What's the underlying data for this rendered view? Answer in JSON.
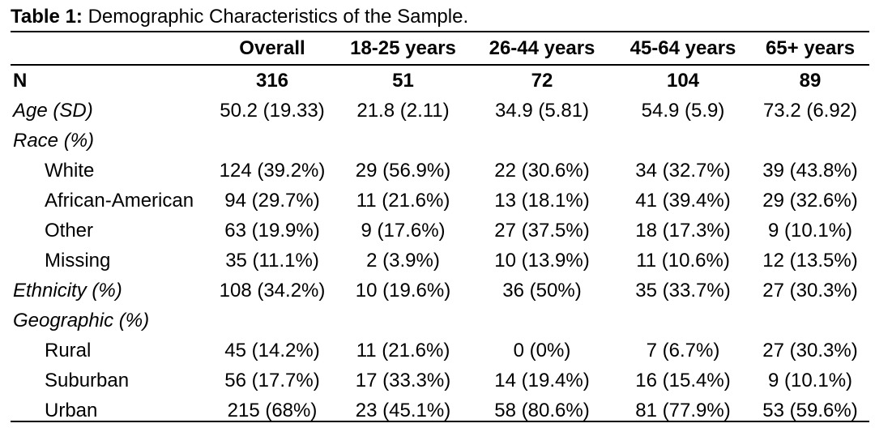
{
  "caption": {
    "label": "Table 1:",
    "text": " Demographic Characteristics of the Sample."
  },
  "table": {
    "headers": [
      "",
      "Overall",
      "18-25 years",
      "26-44 years",
      "45-64 years",
      "65+ years"
    ],
    "rows": [
      {
        "label": "N",
        "cells": [
          "316",
          "51",
          "72",
          "104",
          "89"
        ]
      },
      {
        "label": "Age (SD)",
        "cells": [
          "50.2 (19.33)",
          "21.8 (2.11)",
          "34.9 (5.81)",
          "54.9 (5.9)",
          "73.2 (6.92)"
        ]
      },
      {
        "label": "Race (%)",
        "cells": [
          "",
          "",
          "",
          "",
          ""
        ]
      },
      {
        "label": "White",
        "cells": [
          "124 (39.2%)",
          "29 (56.9%)",
          "22 (30.6%)",
          "34 (32.7%)",
          "39 (43.8%)"
        ]
      },
      {
        "label": "African-American",
        "cells": [
          "94 (29.7%)",
          "11 (21.6%)",
          "13 (18.1%)",
          "41 (39.4%)",
          "29 (32.6%)"
        ]
      },
      {
        "label": "Other",
        "cells": [
          "63 (19.9%)",
          "9 (17.6%)",
          "27 (37.5%)",
          "18 (17.3%)",
          "9 (10.1%)"
        ]
      },
      {
        "label": "Missing",
        "cells": [
          "35 (11.1%)",
          "2 (3.9%)",
          "10 (13.9%)",
          "11 (10.6%)",
          "12 (13.5%)"
        ]
      },
      {
        "label": "Ethnicity (%)",
        "cells": [
          "108 (34.2%)",
          "10 (19.6%)",
          "36 (50%)",
          "35 (33.7%)",
          "27 (30.3%)"
        ]
      },
      {
        "label": "Geographic (%)",
        "cells": [
          "",
          "",
          "",
          "",
          ""
        ]
      },
      {
        "label": "Rural",
        "cells": [
          "45 (14.2%)",
          "11 (21.6%)",
          "0 (0%)",
          "7 (6.7%)",
          "27 (30.3%)"
        ]
      },
      {
        "label": "Suburban",
        "cells": [
          "56 (17.7%)",
          "17 (33.3%)",
          "14 (19.4%)",
          "16 (15.4%)",
          "9 (10.1%)"
        ]
      },
      {
        "label": "Urban",
        "cells": [
          "215 (68%)",
          "23 (45.1%)",
          "58 (80.6%)",
          "81 (77.9%)",
          "53 (59.6%)"
        ]
      }
    ]
  }
}
